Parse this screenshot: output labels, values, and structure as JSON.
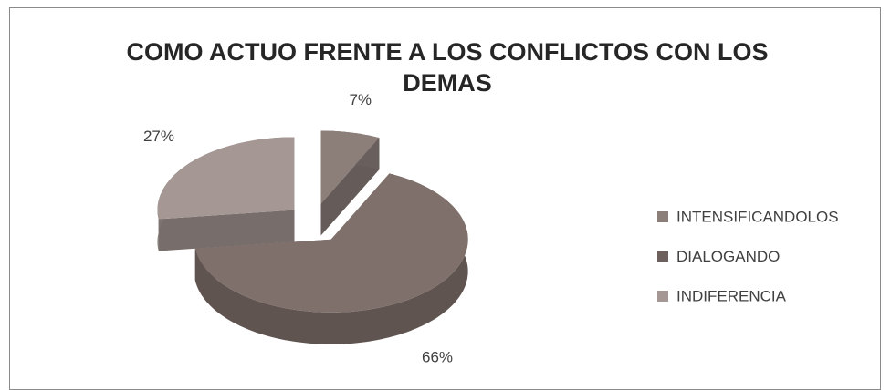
{
  "chart_data": {
    "type": "pie",
    "title": "COMO ACTUO FRENTE A LOS CONFLICTOS CON LOS DEMAS",
    "categories": [
      "INTENSIFICANDOLOS",
      "DIALOGANDO",
      "INDIFERENCIA"
    ],
    "values": [
      7,
      66,
      27
    ],
    "value_labels": [
      "7%",
      "66%",
      "27%"
    ],
    "colors": [
      "#8c7f7a",
      "#7f706b",
      "#a59894"
    ],
    "legend": "right"
  }
}
